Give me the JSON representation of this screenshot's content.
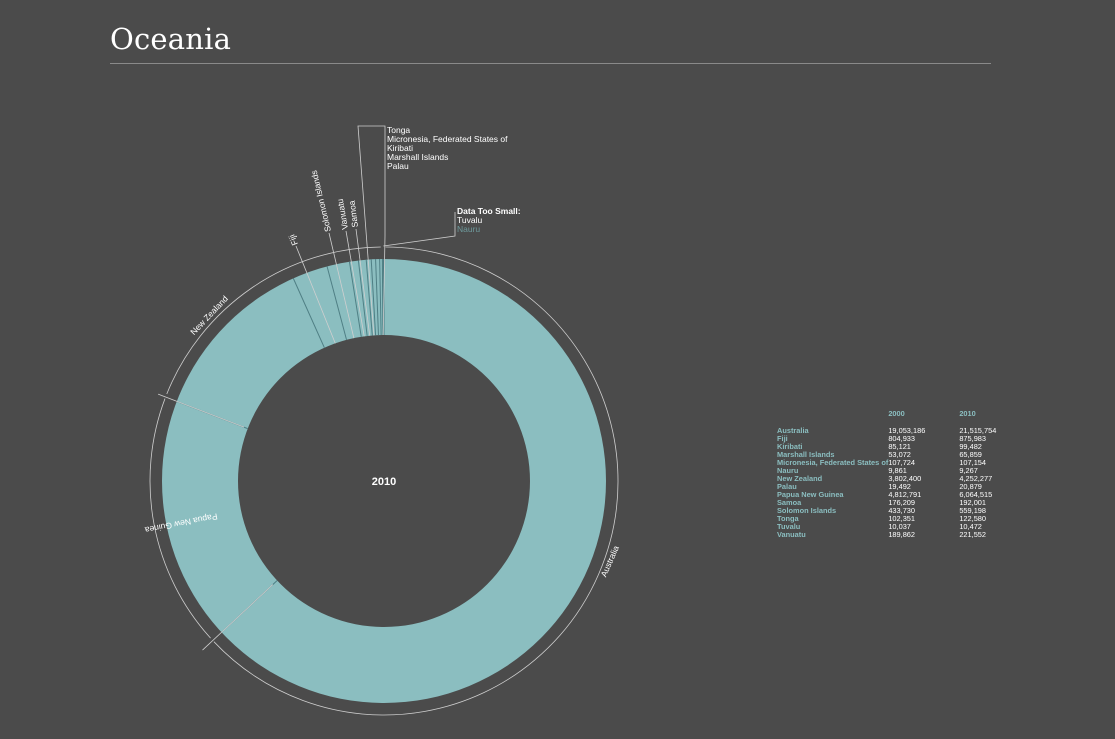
{
  "page": {
    "title": "Oceania"
  },
  "chart_data": {
    "type": "pie",
    "style": "donut",
    "center_label": "2010",
    "year_shown": "2010",
    "small_groups": [
      {
        "labels": [
          "Tonga",
          "Micronesia, Federated States of",
          "Kiribati",
          "Marshall Islands",
          "Palau"
        ]
      },
      {
        "heading": "Data Too Small:",
        "labels": [
          "Tuvalu",
          "Nauru"
        ],
        "colors": [
          "#ffffff",
          "#6e9a9c"
        ]
      }
    ],
    "slice_labels": [
      "Australia",
      "Papua New Guinea",
      "New Zealand",
      "Fiji",
      "Solomon Islands",
      "Vanuatu",
      "Samoa"
    ],
    "table": {
      "columns": [
        "",
        "2000",
        "2010"
      ],
      "rows": [
        {
          "name": "Australia",
          "v2000": "19,053,186",
          "v2010": "21,515,754"
        },
        {
          "name": "Fiji",
          "v2000": "804,933",
          "v2010": "875,983"
        },
        {
          "name": "Kiribati",
          "v2000": "85,121",
          "v2010": "99,482"
        },
        {
          "name": "Marshall Islands",
          "v2000": "53,072",
          "v2010": "65,859"
        },
        {
          "name": "Micronesia, Federated States of",
          "v2000": "107,724",
          "v2010": "107,154"
        },
        {
          "name": "Nauru",
          "v2000": "9,861",
          "v2010": "9,267"
        },
        {
          "name": "New Zealand",
          "v2000": "3,802,400",
          "v2010": "4,252,277"
        },
        {
          "name": "Palau",
          "v2000": "19,492",
          "v2010": "20,879"
        },
        {
          "name": "Papua New Guinea",
          "v2000": "4,812,791",
          "v2010": "6,064,515"
        },
        {
          "name": "Samoa",
          "v2000": "176,209",
          "v2010": "192,001"
        },
        {
          "name": "Solomon Islands",
          "v2000": "433,730",
          "v2010": "559,198"
        },
        {
          "name": "Tonga",
          "v2000": "102,351",
          "v2010": "122,580"
        },
        {
          "name": "Tuvalu",
          "v2000": "10,037",
          "v2010": "10,472"
        },
        {
          "name": "Vanuatu",
          "v2000": "189,862",
          "v2010": "221,552"
        }
      ]
    },
    "colors": {
      "ring": "#8bbec0",
      "divider": "#4f7f84",
      "background": "#4b4b4b",
      "outline": "#cfcfcf"
    }
  }
}
